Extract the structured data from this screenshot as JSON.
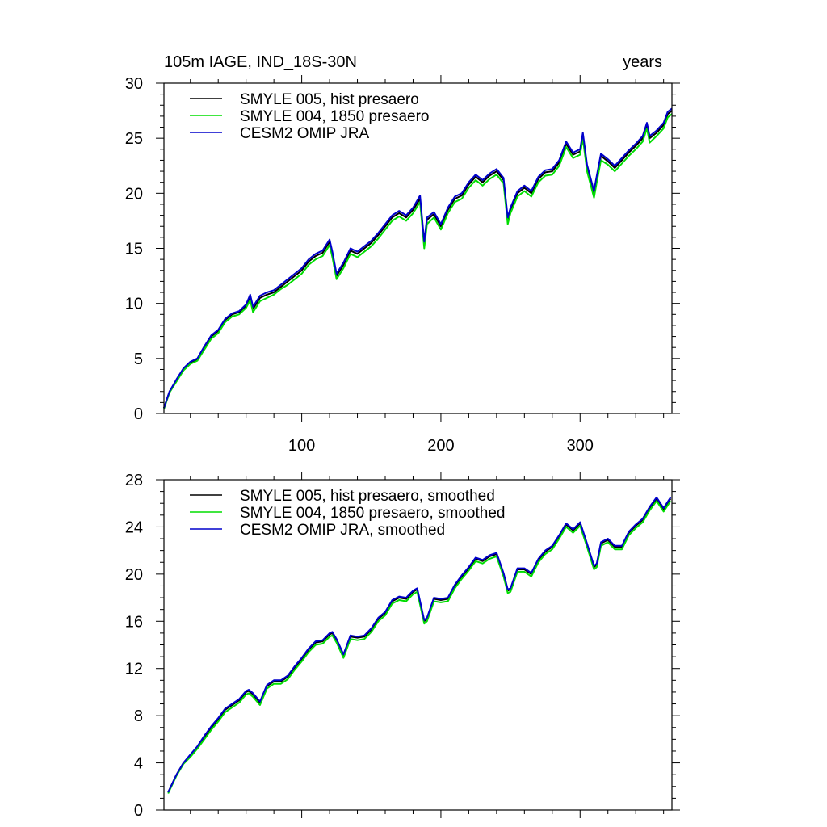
{
  "chart_data": [
    {
      "type": "line",
      "title_left": "105m IAGE, IND_18S-30N",
      "title_right": "years",
      "xlim": [
        1,
        366
      ],
      "ylim": [
        0,
        30
      ],
      "xticks": [
        100,
        200,
        300
      ],
      "xtick_labels": [
        "100",
        "200",
        "300"
      ],
      "yticks": [
        0,
        5,
        10,
        15,
        20,
        25,
        30
      ],
      "ytick_labels": [
        "0",
        "5",
        "10",
        "15",
        "20",
        "25",
        "30"
      ],
      "legend_position": "top-left",
      "grid": false,
      "series": [
        {
          "name": "SMYLE 005, hist presaero",
          "color": "#000000",
          "x": [
            1,
            5,
            10,
            15,
            20,
            25,
            30,
            35,
            40,
            45,
            50,
            55,
            60,
            63,
            65,
            70,
            75,
            80,
            85,
            90,
            95,
            100,
            105,
            110,
            115,
            120,
            122,
            125,
            130,
            135,
            140,
            145,
            150,
            155,
            160,
            165,
            170,
            175,
            180,
            185,
            188,
            190,
            195,
            200,
            205,
            210,
            215,
            220,
            225,
            230,
            235,
            240,
            245,
            248,
            250,
            255,
            260,
            265,
            270,
            275,
            280,
            285,
            290,
            295,
            300,
            302,
            305,
            310,
            312,
            315,
            320,
            325,
            330,
            335,
            340,
            345,
            348,
            350,
            355,
            360,
            363,
            366
          ],
          "y": [
            0.5,
            2.0,
            3.0,
            4.0,
            4.6,
            4.9,
            6.0,
            7.0,
            7.5,
            8.5,
            9.0,
            9.2,
            9.8,
            10.6,
            9.5,
            10.5,
            10.8,
            11.0,
            11.5,
            12.0,
            12.5,
            13.0,
            13.8,
            14.3,
            14.6,
            15.6,
            14.5,
            12.5,
            13.5,
            14.8,
            14.5,
            15.0,
            15.5,
            16.2,
            17.0,
            17.8,
            18.2,
            17.8,
            18.5,
            19.5,
            15.4,
            17.6,
            18.1,
            17.0,
            18.5,
            19.5,
            19.8,
            20.8,
            21.5,
            21.0,
            21.6,
            22.0,
            21.2,
            17.6,
            18.5,
            20.0,
            20.5,
            20.0,
            21.3,
            21.9,
            22.0,
            22.8,
            24.5,
            23.5,
            23.8,
            25.3,
            22.4,
            20.0,
            21.4,
            23.4,
            22.9,
            22.3,
            23.0,
            23.7,
            24.3,
            25.0,
            26.2,
            25.0,
            25.5,
            26.2,
            27.2,
            27.5
          ]
        },
        {
          "name": "SMYLE 004, 1850 presaero",
          "color": "#00dd00",
          "x": [
            1,
            5,
            10,
            15,
            20,
            25,
            30,
            35,
            40,
            45,
            50,
            55,
            60,
            63,
            65,
            70,
            75,
            80,
            85,
            90,
            95,
            100,
            105,
            110,
            115,
            120,
            122,
            125,
            130,
            135,
            140,
            145,
            150,
            155,
            160,
            165,
            170,
            175,
            180,
            185,
            188,
            190,
            195,
            200,
            205,
            210,
            215,
            220,
            225,
            230,
            235,
            240,
            245,
            248,
            250,
            255,
            260,
            265,
            270,
            275,
            280,
            285,
            290,
            295,
            300,
            302,
            305,
            310,
            312,
            315,
            320,
            325,
            330,
            335,
            340,
            345,
            348,
            350,
            355,
            360,
            363,
            366
          ],
          "y": [
            0.4,
            1.9,
            2.9,
            3.9,
            4.5,
            4.8,
            5.8,
            6.8,
            7.3,
            8.3,
            8.8,
            9.0,
            9.6,
            10.3,
            9.2,
            10.2,
            10.5,
            10.8,
            11.3,
            11.7,
            12.2,
            12.7,
            13.5,
            14.0,
            14.3,
            15.3,
            14.2,
            12.2,
            13.2,
            14.5,
            14.2,
            14.7,
            15.2,
            15.9,
            16.7,
            17.5,
            17.9,
            17.5,
            18.2,
            19.2,
            15.0,
            17.2,
            17.8,
            16.7,
            18.2,
            19.2,
            19.5,
            20.5,
            21.2,
            20.7,
            21.3,
            21.7,
            20.9,
            17.2,
            18.2,
            19.7,
            20.2,
            19.7,
            21.0,
            21.6,
            21.7,
            22.5,
            24.2,
            23.2,
            23.5,
            25.0,
            22.0,
            19.6,
            21.0,
            23.0,
            22.6,
            22.0,
            22.7,
            23.4,
            24.0,
            24.7,
            25.9,
            24.6,
            25.2,
            25.9,
            26.9,
            27.2
          ]
        },
        {
          "name": "CESM2 OMIP JRA",
          "color": "#0000cc",
          "x": [
            1,
            5,
            10,
            15,
            20,
            25,
            30,
            35,
            40,
            45,
            50,
            55,
            60,
            63,
            65,
            70,
            75,
            80,
            85,
            90,
            95,
            100,
            105,
            110,
            115,
            120,
            122,
            125,
            130,
            135,
            140,
            145,
            150,
            155,
            160,
            165,
            170,
            175,
            180,
            185,
            188,
            190,
            195,
            200,
            205,
            210,
            215,
            220,
            225,
            230,
            235,
            240,
            245,
            248,
            250,
            255,
            260,
            265,
            270,
            275,
            280,
            285,
            290,
            295,
            300,
            302,
            305,
            310,
            312,
            315,
            320,
            325,
            330,
            335,
            340,
            345,
            348,
            350,
            355,
            360,
            363,
            366
          ],
          "y": [
            0.5,
            2.0,
            3.1,
            4.1,
            4.7,
            5.0,
            6.1,
            7.1,
            7.6,
            8.6,
            9.1,
            9.3,
            9.9,
            10.8,
            9.7,
            10.7,
            11.0,
            11.2,
            11.7,
            12.2,
            12.7,
            13.2,
            14.0,
            14.5,
            14.8,
            15.8,
            14.7,
            12.7,
            13.7,
            15.0,
            14.7,
            15.2,
            15.7,
            16.4,
            17.2,
            18.0,
            18.4,
            18.0,
            18.7,
            19.8,
            15.6,
            17.8,
            18.3,
            17.2,
            18.7,
            19.7,
            20.0,
            21.0,
            21.7,
            21.2,
            21.8,
            22.2,
            21.4,
            17.8,
            18.7,
            20.2,
            20.7,
            20.2,
            21.5,
            22.1,
            22.2,
            23.0,
            24.7,
            23.7,
            24.0,
            25.5,
            22.6,
            20.2,
            21.6,
            23.6,
            23.1,
            22.5,
            23.2,
            23.9,
            24.5,
            25.2,
            26.4,
            25.2,
            25.7,
            26.4,
            27.4,
            27.7
          ]
        }
      ]
    },
    {
      "type": "line",
      "xlim": [
        1,
        366
      ],
      "ylim": [
        0,
        28
      ],
      "xticks": [
        100,
        200,
        300
      ],
      "yticks": [
        0,
        4,
        8,
        12,
        16,
        20,
        24,
        28
      ],
      "ytick_labels": [
        "0",
        "4",
        "8",
        "12",
        "16",
        "20",
        "24",
        "28"
      ],
      "legend_position": "top-left",
      "grid": false,
      "series": [
        {
          "name": "SMYLE 005, hist presaero, smoothed",
          "color": "#000000",
          "x": [
            4,
            10,
            15,
            20,
            25,
            30,
            35,
            40,
            45,
            50,
            55,
            60,
            62,
            65,
            70,
            75,
            80,
            85,
            90,
            95,
            100,
            105,
            110,
            115,
            120,
            122,
            125,
            130,
            135,
            140,
            145,
            150,
            155,
            160,
            165,
            170,
            175,
            180,
            183,
            188,
            190,
            195,
            200,
            205,
            210,
            215,
            220,
            225,
            230,
            235,
            240,
            245,
            248,
            250,
            255,
            260,
            265,
            270,
            275,
            280,
            285,
            290,
            295,
            300,
            305,
            310,
            312,
            315,
            320,
            325,
            330,
            335,
            340,
            345,
            350,
            355,
            360,
            365
          ],
          "y": [
            1.5,
            3.0,
            4.0,
            4.6,
            5.3,
            6.2,
            7.0,
            7.7,
            8.5,
            8.9,
            9.3,
            10.0,
            10.1,
            9.8,
            9.1,
            10.5,
            10.9,
            10.9,
            11.3,
            12.1,
            12.8,
            13.6,
            14.2,
            14.3,
            14.9,
            15.0,
            14.4,
            13.1,
            14.7,
            14.6,
            14.7,
            15.3,
            16.2,
            16.7,
            17.7,
            18.0,
            17.9,
            18.5,
            18.7,
            16.0,
            16.2,
            17.9,
            17.8,
            17.9,
            19.0,
            19.8,
            20.5,
            21.3,
            21.1,
            21.5,
            21.7,
            20.0,
            18.6,
            18.7,
            20.4,
            20.4,
            20.0,
            21.2,
            21.9,
            22.3,
            23.2,
            24.2,
            23.7,
            24.3,
            22.5,
            20.6,
            20.8,
            22.6,
            22.9,
            22.3,
            22.3,
            23.5,
            24.1,
            24.6,
            25.6,
            26.4,
            25.5,
            26.4
          ]
        },
        {
          "name": "SMYLE 004, 1850 presaero, smoothed",
          "color": "#00dd00",
          "x": [
            4,
            10,
            15,
            20,
            25,
            30,
            35,
            40,
            45,
            50,
            55,
            60,
            62,
            65,
            70,
            75,
            80,
            85,
            90,
            95,
            100,
            105,
            110,
            115,
            120,
            122,
            125,
            130,
            135,
            140,
            145,
            150,
            155,
            160,
            165,
            170,
            175,
            180,
            183,
            188,
            190,
            195,
            200,
            205,
            210,
            215,
            220,
            225,
            230,
            235,
            240,
            245,
            248,
            250,
            255,
            260,
            265,
            270,
            275,
            280,
            285,
            290,
            295,
            300,
            305,
            310,
            312,
            315,
            320,
            325,
            330,
            335,
            340,
            345,
            350,
            355,
            360,
            365
          ],
          "y": [
            1.4,
            2.9,
            3.9,
            4.5,
            5.2,
            6.0,
            6.8,
            7.5,
            8.3,
            8.7,
            9.1,
            9.8,
            9.9,
            9.6,
            8.9,
            10.3,
            10.7,
            10.7,
            11.1,
            11.9,
            12.6,
            13.4,
            14.0,
            14.1,
            14.7,
            14.8,
            14.2,
            12.9,
            14.5,
            14.4,
            14.5,
            15.1,
            16.0,
            16.5,
            17.5,
            17.8,
            17.7,
            18.3,
            18.5,
            15.8,
            16.0,
            17.7,
            17.6,
            17.7,
            18.8,
            19.6,
            20.3,
            21.1,
            20.9,
            21.3,
            21.5,
            19.8,
            18.4,
            18.5,
            20.2,
            20.2,
            19.8,
            21.0,
            21.7,
            22.1,
            23.0,
            24.0,
            23.5,
            24.1,
            22.3,
            20.4,
            20.6,
            22.4,
            22.7,
            22.1,
            22.1,
            23.3,
            23.9,
            24.4,
            25.4,
            26.2,
            25.3,
            26.2
          ]
        },
        {
          "name": "CESM2 OMIP JRA, smoothed",
          "color": "#0000cc",
          "x": [
            4,
            10,
            15,
            20,
            25,
            30,
            35,
            40,
            45,
            50,
            55,
            60,
            62,
            65,
            70,
            75,
            80,
            85,
            90,
            95,
            100,
            105,
            110,
            115,
            120,
            122,
            125,
            130,
            135,
            140,
            145,
            150,
            155,
            160,
            165,
            170,
            175,
            180,
            183,
            188,
            190,
            195,
            200,
            205,
            210,
            215,
            220,
            225,
            230,
            235,
            240,
            245,
            248,
            250,
            255,
            260,
            265,
            270,
            275,
            280,
            285,
            290,
            295,
            300,
            305,
            310,
            312,
            315,
            320,
            325,
            330,
            335,
            340,
            345,
            350,
            355,
            360,
            365
          ],
          "y": [
            1.5,
            3.0,
            4.0,
            4.7,
            5.4,
            6.3,
            7.1,
            7.8,
            8.6,
            9.0,
            9.4,
            10.1,
            10.2,
            9.9,
            9.2,
            10.6,
            11.0,
            11.0,
            11.4,
            12.2,
            12.9,
            13.7,
            14.3,
            14.4,
            15.0,
            15.1,
            14.5,
            13.2,
            14.8,
            14.7,
            14.8,
            15.4,
            16.3,
            16.8,
            17.8,
            18.1,
            18.0,
            18.6,
            18.8,
            16.1,
            16.3,
            18.0,
            17.9,
            18.0,
            19.1,
            19.9,
            20.6,
            21.4,
            21.2,
            21.6,
            21.8,
            20.1,
            18.7,
            18.8,
            20.5,
            20.5,
            20.1,
            21.3,
            22.0,
            22.4,
            23.3,
            24.3,
            23.8,
            24.4,
            22.6,
            20.7,
            20.9,
            22.7,
            23.0,
            22.4,
            22.4,
            23.6,
            24.2,
            24.7,
            25.7,
            26.5,
            25.6,
            26.5
          ]
        }
      ]
    }
  ]
}
